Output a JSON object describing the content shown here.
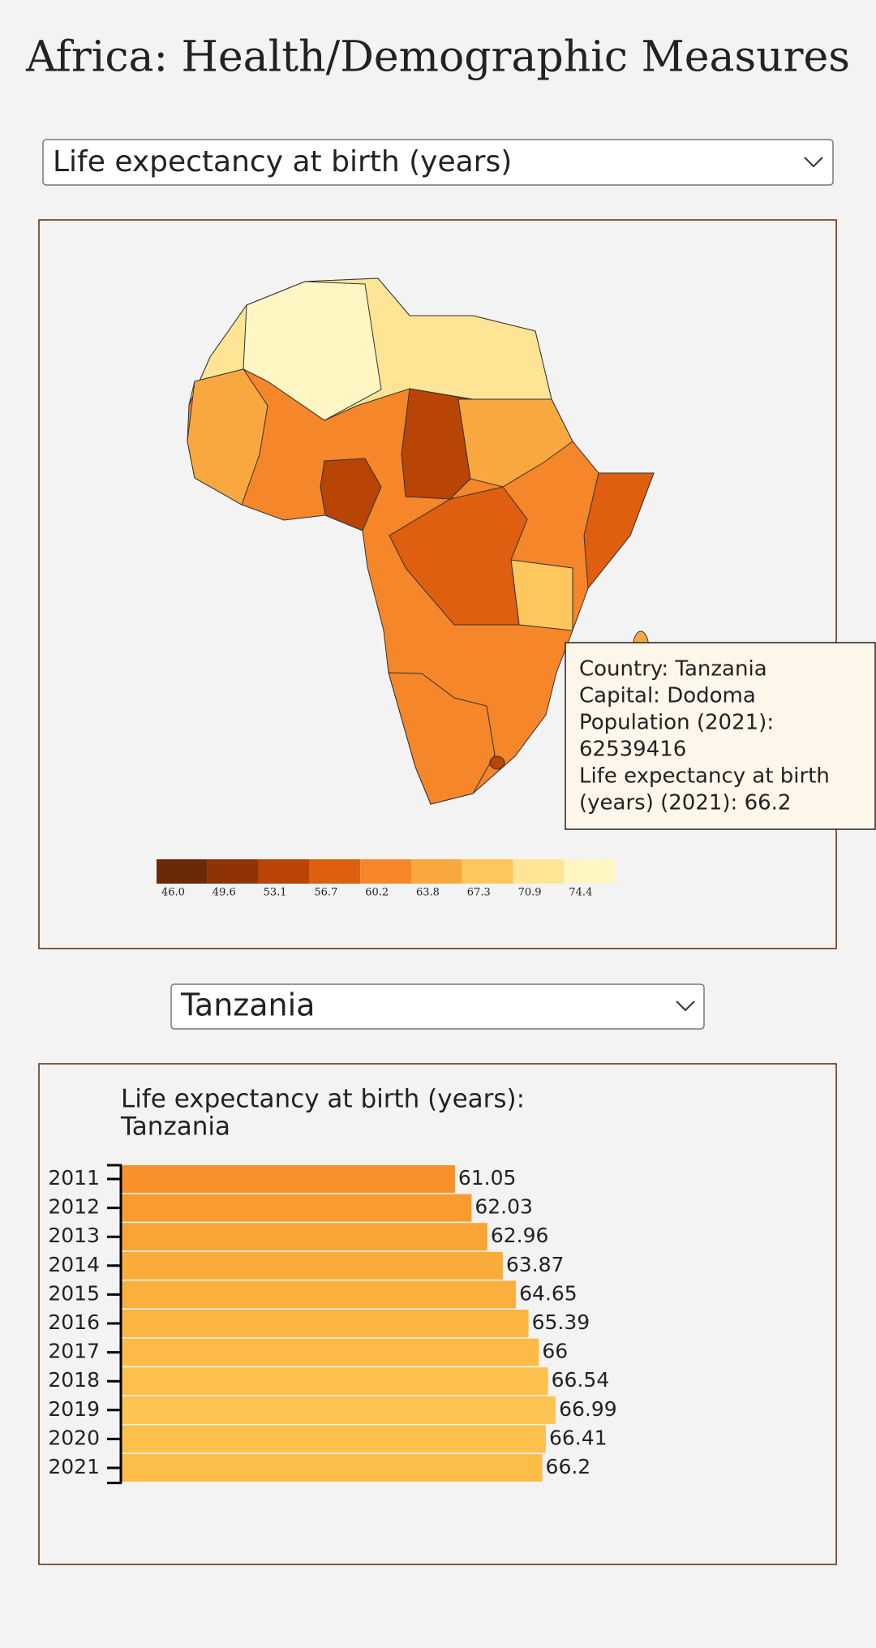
{
  "header": {
    "title": "Africa: Health/Demographic Measures"
  },
  "measure_select": {
    "selected": "Life expectancy at birth (years)"
  },
  "map": {
    "legend": {
      "labels": [
        "46.0",
        "49.6",
        "53.1",
        "56.7",
        "60.2",
        "63.8",
        "67.3",
        "70.9",
        "74.4"
      ],
      "colors": [
        "#6b2a07",
        "#8f3204",
        "#b84405",
        "#dd5f0f",
        "#f5862a",
        "#f9a840",
        "#fdc75e",
        "#fee596",
        "#fff6c4"
      ]
    },
    "tooltip": {
      "lines": [
        "Country: Tanzania",
        "Capital: Dodoma",
        "Population (2021):",
        "62539416",
        "Life expectancy at birth",
        "(years) (2021): 66.2"
      ]
    }
  },
  "country_select": {
    "selected": "Tanzania"
  },
  "chart_data": {
    "type": "hbar",
    "title_lines": [
      "Life expectancy at birth (years):",
      "Tanzania"
    ],
    "categories": [
      "2011",
      "2012",
      "2013",
      "2014",
      "2015",
      "2016",
      "2017",
      "2018",
      "2019",
      "2020",
      "2021"
    ],
    "values": [
      61.05,
      62.03,
      62.96,
      63.87,
      64.65,
      65.39,
      66,
      66.54,
      66.99,
      66.41,
      66.2
    ],
    "colors": [
      "#f7922b",
      "#f89c30",
      "#f9a435",
      "#faac3a",
      "#fbb03e",
      "#fbb641",
      "#fcbb46",
      "#fdc04c",
      "#fdc350",
      "#fdc04b",
      "#fcbe49"
    ],
    "xlim": [
      41.35,
      74.4
    ]
  }
}
